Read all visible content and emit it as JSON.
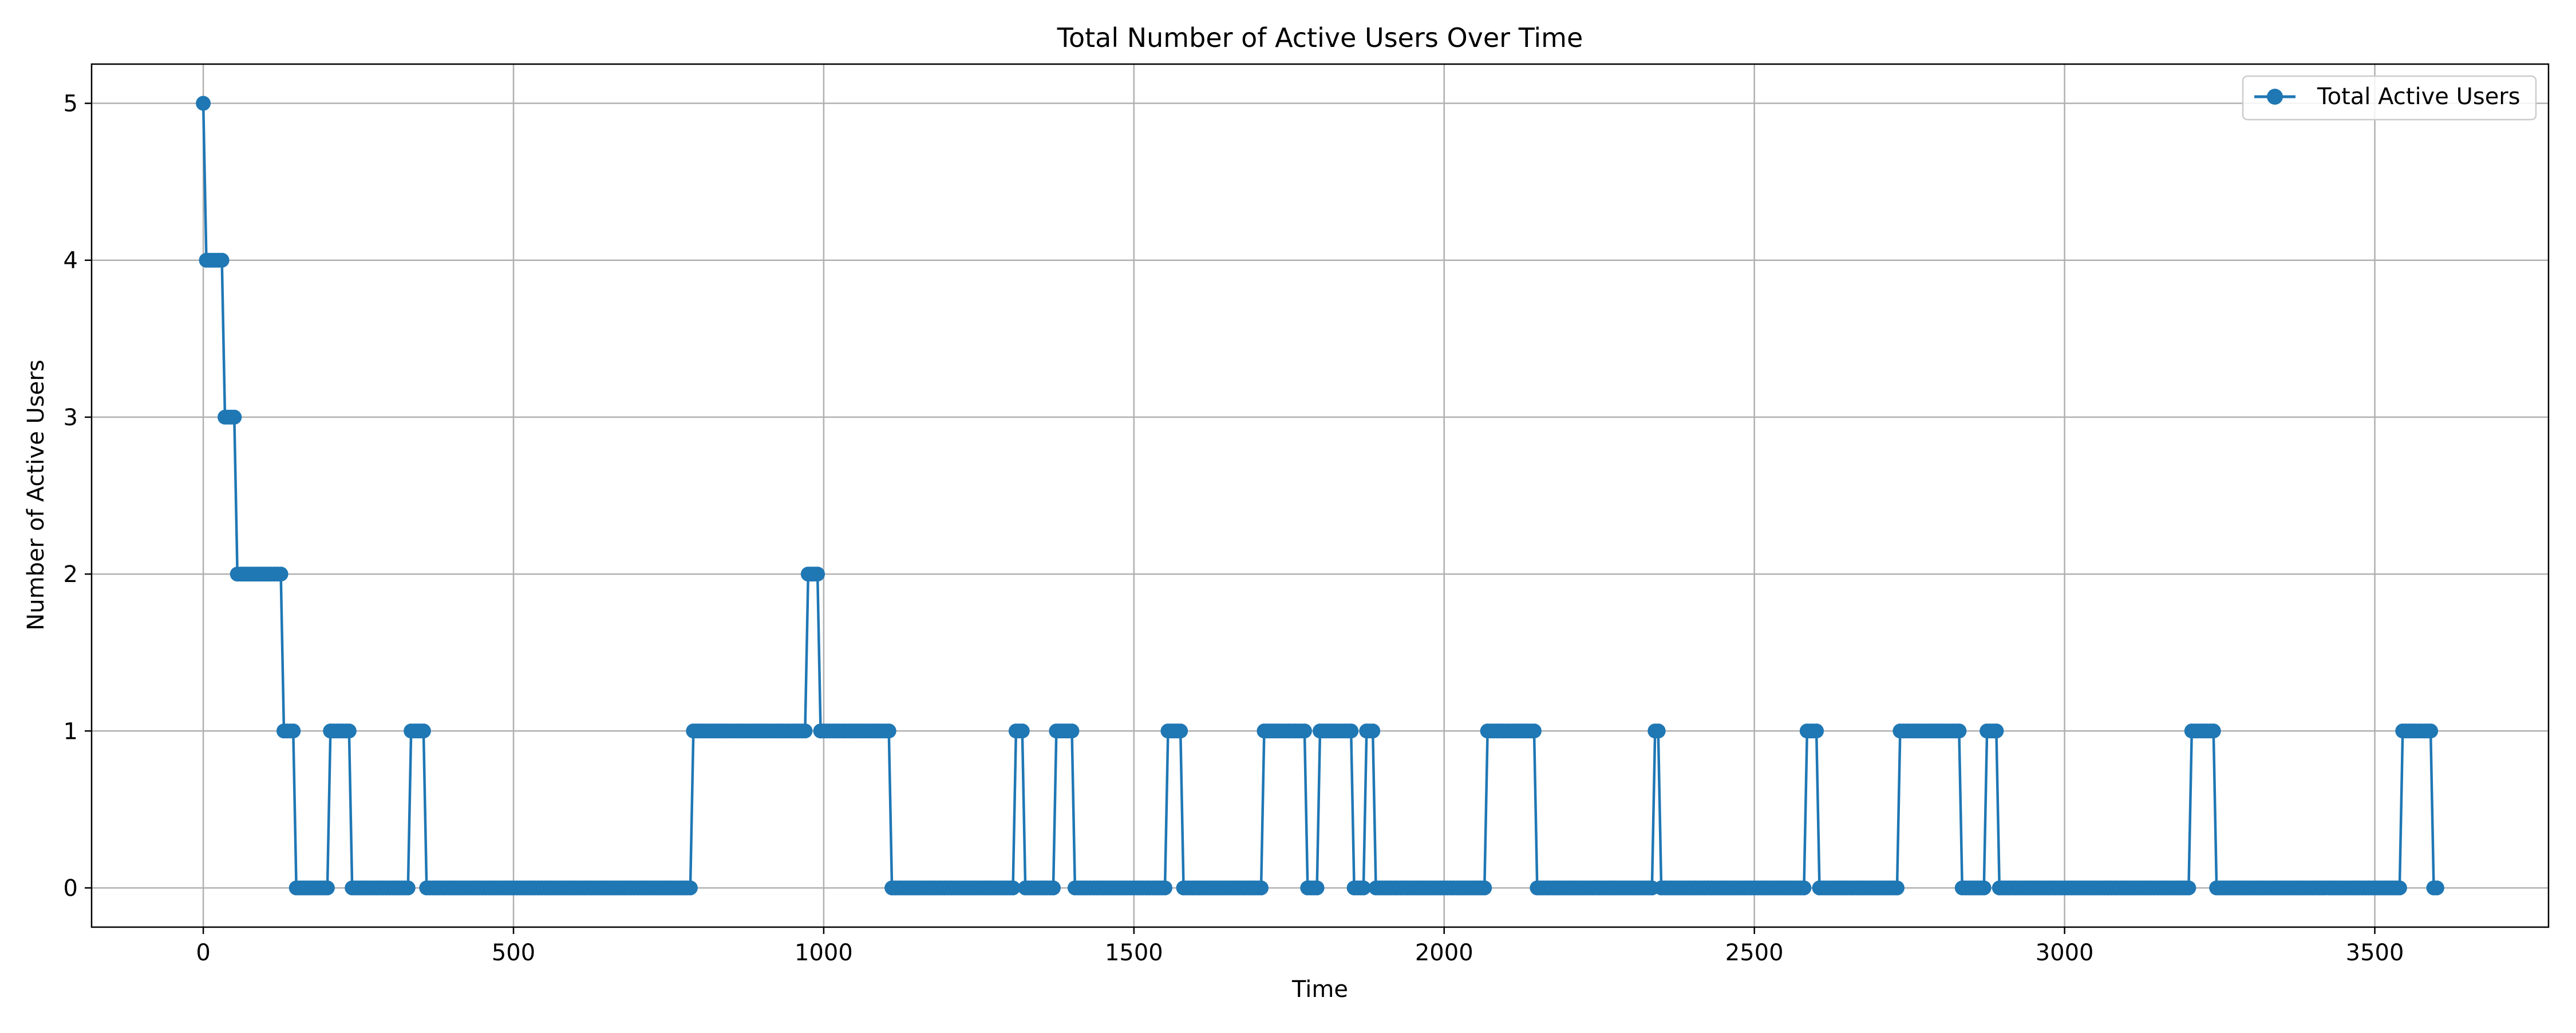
{
  "chart_data": {
    "type": "line",
    "title": "Total Number of Active Users Over Time",
    "xlabel": "Time",
    "ylabel": "Number of Active Users",
    "xlim": [
      -180,
      3780
    ],
    "ylim": [
      -0.25,
      5.25
    ],
    "xticks": [
      0,
      500,
      1000,
      1500,
      2000,
      2500,
      3000,
      3500
    ],
    "yticks": [
      0,
      1,
      2,
      3,
      4,
      5
    ],
    "grid": true,
    "legend_position": "top-right",
    "step_interval": 5,
    "series": [
      {
        "name": "Total Active Users",
        "color": "#1f77b4",
        "marker": "circle",
        "segments": [
          {
            "x_start": 0,
            "x_end": 0,
            "value": 5
          },
          {
            "x_start": 5,
            "x_end": 30,
            "value": 4
          },
          {
            "x_start": 35,
            "x_end": 50,
            "value": 3
          },
          {
            "x_start": 55,
            "x_end": 125,
            "value": 2
          },
          {
            "x_start": 130,
            "x_end": 145,
            "value": 1
          },
          {
            "x_start": 150,
            "x_end": 200,
            "value": 0
          },
          {
            "x_start": 205,
            "x_end": 235,
            "value": 1
          },
          {
            "x_start": 240,
            "x_end": 330,
            "value": 0
          },
          {
            "x_start": 335,
            "x_end": 355,
            "value": 1
          },
          {
            "x_start": 360,
            "x_end": 785,
            "value": 0
          },
          {
            "x_start": 790,
            "x_end": 970,
            "value": 1
          },
          {
            "x_start": 975,
            "x_end": 990,
            "value": 2
          },
          {
            "x_start": 995,
            "x_end": 1105,
            "value": 1
          },
          {
            "x_start": 1110,
            "x_end": 1305,
            "value": 0
          },
          {
            "x_start": 1310,
            "x_end": 1320,
            "value": 1
          },
          {
            "x_start": 1325,
            "x_end": 1370,
            "value": 0
          },
          {
            "x_start": 1375,
            "x_end": 1400,
            "value": 1
          },
          {
            "x_start": 1405,
            "x_end": 1550,
            "value": 0
          },
          {
            "x_start": 1555,
            "x_end": 1575,
            "value": 1
          },
          {
            "x_start": 1580,
            "x_end": 1705,
            "value": 0
          },
          {
            "x_start": 1710,
            "x_end": 1775,
            "value": 1
          },
          {
            "x_start": 1780,
            "x_end": 1795,
            "value": 0
          },
          {
            "x_start": 1800,
            "x_end": 1850,
            "value": 1
          },
          {
            "x_start": 1855,
            "x_end": 1870,
            "value": 0
          },
          {
            "x_start": 1875,
            "x_end": 1885,
            "value": 1
          },
          {
            "x_start": 1890,
            "x_end": 2065,
            "value": 0
          },
          {
            "x_start": 2070,
            "x_end": 2145,
            "value": 1
          },
          {
            "x_start": 2150,
            "x_end": 2335,
            "value": 0
          },
          {
            "x_start": 2340,
            "x_end": 2345,
            "value": 1
          },
          {
            "x_start": 2350,
            "x_end": 2580,
            "value": 0
          },
          {
            "x_start": 2585,
            "x_end": 2600,
            "value": 1
          },
          {
            "x_start": 2605,
            "x_end": 2730,
            "value": 0
          },
          {
            "x_start": 2735,
            "x_end": 2830,
            "value": 1
          },
          {
            "x_start": 2835,
            "x_end": 2870,
            "value": 0
          },
          {
            "x_start": 2875,
            "x_end": 2890,
            "value": 1
          },
          {
            "x_start": 2895,
            "x_end": 3200,
            "value": 0
          },
          {
            "x_start": 3205,
            "x_end": 3240,
            "value": 1
          },
          {
            "x_start": 3245,
            "x_end": 3540,
            "value": 0
          },
          {
            "x_start": 3545,
            "x_end": 3590,
            "value": 1
          },
          {
            "x_start": 3595,
            "x_end": 3600,
            "value": 0
          }
        ]
      }
    ]
  }
}
